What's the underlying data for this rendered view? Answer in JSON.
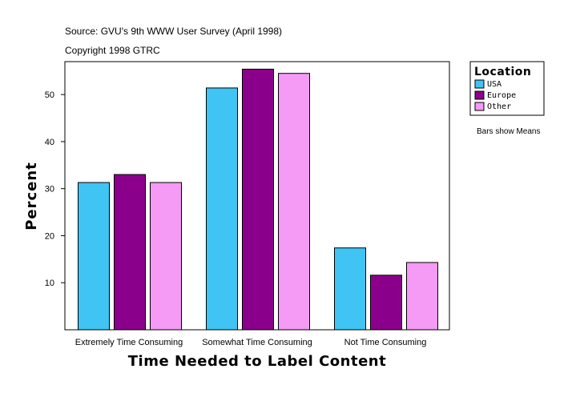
{
  "header": {
    "source": "Source: GVU's 9th WWW User Survey (April 1998)",
    "copyright": "Copyright 1998 GTRC"
  },
  "note": "Bars show Means",
  "chart_data": {
    "type": "bar",
    "title": "",
    "xlabel": "Time Needed to Label Content",
    "ylabel": "Percent",
    "ylim": [
      0,
      57
    ],
    "yticks": [
      10,
      20,
      30,
      40,
      50
    ],
    "categories": [
      "Extremely Time Consuming",
      "Somewhat Time Consuming",
      "Not Time Consuming"
    ],
    "series": [
      {
        "name": "USA",
        "color": "#40C4F4",
        "values": [
          31.3,
          51.4,
          17.4
        ]
      },
      {
        "name": "Europe",
        "color": "#8B008B",
        "values": [
          33.0,
          55.4,
          11.6
        ]
      },
      {
        "name": "Other",
        "color": "#F59AF5",
        "values": [
          31.3,
          54.5,
          14.3
        ]
      }
    ],
    "legend": {
      "title": "Location",
      "position": "right"
    },
    "grid": false
  }
}
